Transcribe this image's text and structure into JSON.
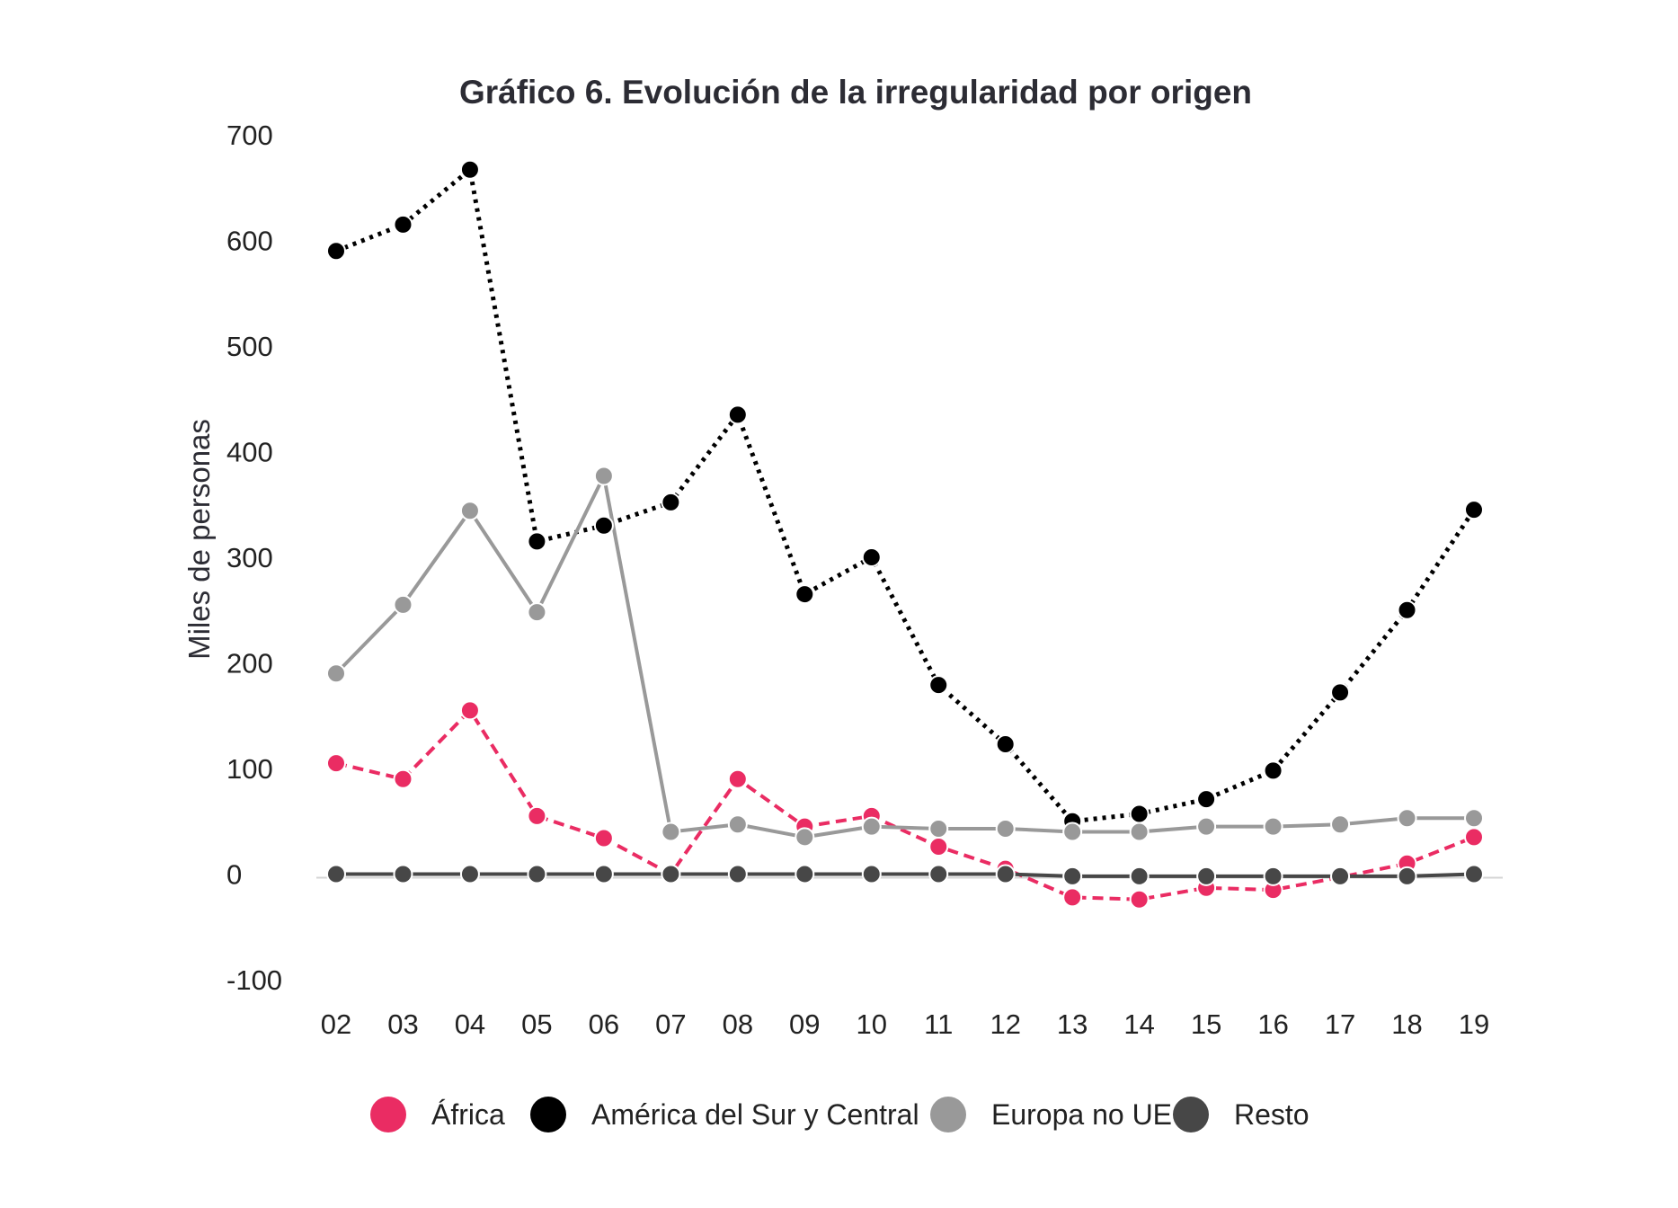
{
  "chart_data": {
    "type": "line",
    "title": "Gráfico 6. Evolución de la irregularidad por origen",
    "xlabel": "",
    "ylabel": "Miles de personas",
    "ylim": [
      -100,
      700
    ],
    "yticks": [
      700,
      600,
      500,
      400,
      300,
      200,
      100,
      0,
      -100
    ],
    "x": [
      "02",
      "03",
      "04",
      "05",
      "06",
      "07",
      "08",
      "09",
      "10",
      "11",
      "12",
      "13",
      "14",
      "15",
      "16",
      "17",
      "18",
      "19"
    ],
    "grid": false,
    "zero_line": true,
    "legend_position": "bottom",
    "series": [
      {
        "name": "África",
        "color": "#ea2c63",
        "line_style": "dashed",
        "values": [
          105,
          90,
          155,
          55,
          34,
          0,
          90,
          45,
          55,
          26,
          5,
          -22,
          -24,
          -13,
          -15,
          -3,
          10,
          35
        ]
      },
      {
        "name": "América del Sur y Central",
        "color": "#000000",
        "line_style": "dotted",
        "values": [
          590,
          615,
          667,
          315,
          330,
          352,
          435,
          265,
          300,
          179,
          123,
          50,
          57,
          71,
          98,
          172,
          250,
          345
        ]
      },
      {
        "name": "Europa no UE",
        "color": "#999999",
        "line_style": "solid",
        "values": [
          190,
          255,
          344,
          248,
          377,
          40,
          47,
          35,
          45,
          43,
          43,
          40,
          40,
          45,
          45,
          47,
          53,
          53
        ]
      },
      {
        "name": "Resto",
        "color": "#474747",
        "line_style": "solid",
        "values": [
          0,
          0,
          0,
          0,
          0,
          0,
          0,
          0,
          0,
          0,
          0,
          -2,
          -2,
          -2,
          -2,
          -2,
          -2,
          0
        ]
      }
    ]
  }
}
